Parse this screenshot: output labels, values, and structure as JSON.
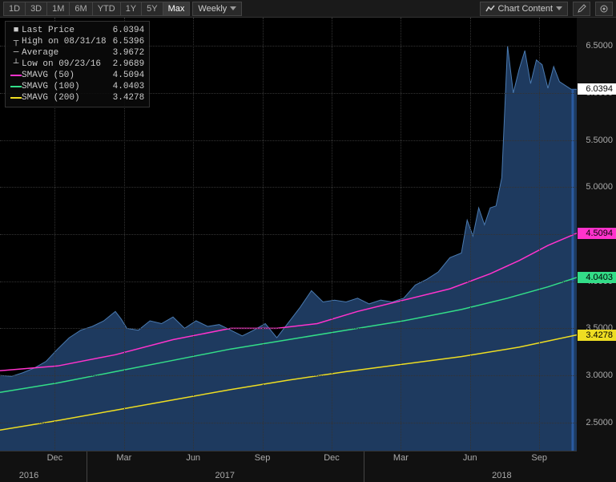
{
  "toolbar": {
    "timeframes": [
      "1D",
      "3D",
      "1M",
      "6M",
      "YTD",
      "1Y",
      "5Y",
      "Max"
    ],
    "active_tf": "Max",
    "period": "Weekly",
    "chart_content_label": "Chart Content"
  },
  "legend": {
    "last_price": {
      "label": "Last Price",
      "value": "6.0394",
      "color": "#ffffff"
    },
    "high": {
      "label": "High on 08/31/18",
      "value": "6.5396",
      "color": "#dddddd"
    },
    "average": {
      "label": "Average",
      "value": "3.9672",
      "color": "#dddddd"
    },
    "low": {
      "label": "Low on 09/23/16",
      "value": "2.9689",
      "color": "#dddddd"
    },
    "sma50": {
      "label": "SMAVG (50)",
      "value": "4.5094",
      "color": "#ff33cc"
    },
    "sma100": {
      "label": "SMAVG (100)",
      "value": "4.0403",
      "color": "#33dd88"
    },
    "sma200": {
      "label": "SMAVG (200)",
      "value": "3.4278",
      "color": "#eedd22"
    }
  },
  "y_axis": {
    "min": 2.2,
    "max": 6.8,
    "ticks": [
      2.5,
      3.0,
      3.5,
      4.0,
      4.5,
      5.0,
      5.5,
      6.0,
      6.5
    ],
    "tick_labels": [
      "2.5000",
      "3.0000",
      "3.5000",
      "4.0000",
      "4.5000",
      "5.0000",
      "5.5000",
      "6.0000",
      "6.5000"
    ]
  },
  "x_axis": {
    "minor_ticks": [
      {
        "x": 0.095,
        "label": "Dec"
      },
      {
        "x": 0.215,
        "label": "Mar"
      },
      {
        "x": 0.335,
        "label": "Jun"
      },
      {
        "x": 0.455,
        "label": "Sep"
      },
      {
        "x": 0.575,
        "label": "Dec"
      },
      {
        "x": 0.695,
        "label": "Mar"
      },
      {
        "x": 0.815,
        "label": "Jun"
      },
      {
        "x": 0.935,
        "label": "Sep"
      }
    ],
    "major_ticks": [
      {
        "x": 0.05,
        "label": "2016"
      },
      {
        "x": 0.39,
        "label": "2017"
      },
      {
        "x": 0.87,
        "label": "2018"
      }
    ],
    "major_dividers": [
      0.15,
      0.63
    ]
  },
  "price_tags": [
    {
      "value": 6.0394,
      "label": "6.0394",
      "bg": "#ffffff",
      "fg": "#000000"
    },
    {
      "value": 4.5094,
      "label": "4.5094",
      "bg": "#ff33cc",
      "fg": "#000000"
    },
    {
      "value": 4.0403,
      "label": "4.0403",
      "bg": "#33dd88",
      "fg": "#000000"
    },
    {
      "value": 3.4278,
      "label": "3.4278",
      "bg": "#eedd22",
      "fg": "#000000"
    }
  ],
  "chart": {
    "background": "#0a0a1e",
    "area_fill": "#1e3a5f",
    "area_stroke": "#4a7ab0",
    "grid_color": "#333333",
    "price_series": [
      [
        0.0,
        3.0
      ],
      [
        0.02,
        2.99
      ],
      [
        0.04,
        3.03
      ],
      [
        0.06,
        3.08
      ],
      [
        0.08,
        3.15
      ],
      [
        0.1,
        3.28
      ],
      [
        0.12,
        3.4
      ],
      [
        0.14,
        3.48
      ],
      [
        0.16,
        3.52
      ],
      [
        0.18,
        3.58
      ],
      [
        0.2,
        3.68
      ],
      [
        0.21,
        3.6
      ],
      [
        0.22,
        3.5
      ],
      [
        0.24,
        3.48
      ],
      [
        0.26,
        3.58
      ],
      [
        0.28,
        3.55
      ],
      [
        0.3,
        3.62
      ],
      [
        0.32,
        3.5
      ],
      [
        0.34,
        3.58
      ],
      [
        0.36,
        3.52
      ],
      [
        0.38,
        3.54
      ],
      [
        0.4,
        3.48
      ],
      [
        0.42,
        3.42
      ],
      [
        0.44,
        3.48
      ],
      [
        0.46,
        3.55
      ],
      [
        0.48,
        3.4
      ],
      [
        0.5,
        3.56
      ],
      [
        0.52,
        3.72
      ],
      [
        0.54,
        3.9
      ],
      [
        0.56,
        3.78
      ],
      [
        0.58,
        3.8
      ],
      [
        0.6,
        3.78
      ],
      [
        0.62,
        3.82
      ],
      [
        0.64,
        3.76
      ],
      [
        0.66,
        3.8
      ],
      [
        0.68,
        3.78
      ],
      [
        0.7,
        3.82
      ],
      [
        0.72,
        3.96
      ],
      [
        0.74,
        4.02
      ],
      [
        0.76,
        4.1
      ],
      [
        0.78,
        4.25
      ],
      [
        0.8,
        4.3
      ],
      [
        0.81,
        4.65
      ],
      [
        0.82,
        4.48
      ],
      [
        0.83,
        4.78
      ],
      [
        0.84,
        4.6
      ],
      [
        0.85,
        4.78
      ],
      [
        0.86,
        4.8
      ],
      [
        0.87,
        5.1
      ],
      [
        0.88,
        6.5
      ],
      [
        0.89,
        6.0
      ],
      [
        0.9,
        6.25
      ],
      [
        0.91,
        6.45
      ],
      [
        0.92,
        6.1
      ],
      [
        0.93,
        6.35
      ],
      [
        0.94,
        6.3
      ],
      [
        0.95,
        6.05
      ],
      [
        0.96,
        6.28
      ],
      [
        0.97,
        6.12
      ],
      [
        0.99,
        6.04
      ],
      [
        1.0,
        6.0394
      ]
    ],
    "sma50": [
      [
        0.0,
        3.05
      ],
      [
        0.1,
        3.1
      ],
      [
        0.2,
        3.22
      ],
      [
        0.3,
        3.38
      ],
      [
        0.4,
        3.5
      ],
      [
        0.48,
        3.5
      ],
      [
        0.55,
        3.55
      ],
      [
        0.62,
        3.68
      ],
      [
        0.7,
        3.8
      ],
      [
        0.78,
        3.92
      ],
      [
        0.85,
        4.08
      ],
      [
        0.9,
        4.22
      ],
      [
        0.95,
        4.38
      ],
      [
        1.0,
        4.51
      ]
    ],
    "sma100": [
      [
        0.0,
        2.82
      ],
      [
        0.1,
        2.92
      ],
      [
        0.2,
        3.04
      ],
      [
        0.3,
        3.16
      ],
      [
        0.4,
        3.28
      ],
      [
        0.5,
        3.38
      ],
      [
        0.6,
        3.48
      ],
      [
        0.7,
        3.58
      ],
      [
        0.8,
        3.7
      ],
      [
        0.88,
        3.82
      ],
      [
        0.95,
        3.94
      ],
      [
        1.0,
        4.04
      ]
    ],
    "sma200": [
      [
        0.0,
        2.42
      ],
      [
        0.1,
        2.52
      ],
      [
        0.2,
        2.63
      ],
      [
        0.3,
        2.74
      ],
      [
        0.4,
        2.85
      ],
      [
        0.5,
        2.95
      ],
      [
        0.6,
        3.04
      ],
      [
        0.7,
        3.12
      ],
      [
        0.8,
        3.2
      ],
      [
        0.9,
        3.3
      ],
      [
        1.0,
        3.43
      ]
    ],
    "vertical_drop_x": 0.993
  }
}
